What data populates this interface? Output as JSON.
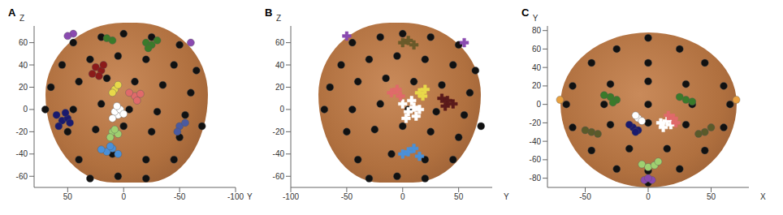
{
  "chart_data": [
    {
      "type": "scatter",
      "title": "A",
      "x_label": "Y",
      "y_label": "Z",
      "xlim": [
        80,
        -100
      ],
      "xticks": [
        50,
        0,
        -50,
        -100
      ],
      "ylim": [
        -70,
        75
      ],
      "yticks": [
        -60,
        -40,
        -20,
        0,
        20,
        40,
        60
      ],
      "series": [
        {
          "color": "#111111",
          "marker": "circle",
          "x": [
            45,
            20,
            0,
            -25,
            -50,
            55,
            30,
            5,
            -20,
            -45,
            -65,
            65,
            40,
            15,
            -10,
            -35,
            -60,
            70,
            45,
            20,
            -5,
            -30,
            -55,
            50,
            25,
            0,
            -25,
            -50,
            -70,
            40,
            10,
            -20,
            -45,
            30,
            5,
            -20
          ],
          "y": [
            60,
            65,
            68,
            65,
            58,
            40,
            45,
            48,
            45,
            40,
            35,
            20,
            25,
            28,
            25,
            22,
            15,
            0,
            0,
            5,
            0,
            -2,
            -5,
            -20,
            -18,
            -15,
            -20,
            -25,
            -15,
            -45,
            -40,
            -45,
            -45,
            -62,
            -60,
            -62
          ]
        },
        {
          "color": "#1a1a6e",
          "marker": "circle",
          "x": [
            60,
            55,
            50,
            58,
            52,
            48
          ],
          "y": [
            -5,
            -10,
            -8,
            -15,
            -3,
            -12
          ]
        },
        {
          "color": "#8b1a1a",
          "marker": "circle",
          "x": [
            25,
            20,
            28,
            22,
            18
          ],
          "y": [
            38,
            35,
            32,
            30,
            40
          ]
        },
        {
          "color": "#ffffff",
          "marker": "circle",
          "x": [
            5,
            8,
            3,
            10,
            0,
            6
          ],
          "y": [
            -5,
            -2,
            0,
            -8,
            -4,
            3
          ]
        },
        {
          "color": "#e8d84a",
          "marker": "circle",
          "x": [
            8,
            5,
            10
          ],
          "y": [
            18,
            22,
            15
          ]
        },
        {
          "color": "#3a7a2a",
          "marker": "circle",
          "x": [
            -20,
            -25,
            -30,
            -22,
            15,
            10
          ],
          "y": [
            60,
            58,
            62,
            55,
            64,
            62
          ]
        },
        {
          "color": "#4a90d8",
          "marker": "circle",
          "x": [
            15,
            10,
            5,
            20,
            12
          ],
          "y": [
            -38,
            -35,
            -40,
            -36,
            -33
          ]
        },
        {
          "color": "#9fd070",
          "marker": "circle",
          "x": [
            10,
            5,
            12,
            8
          ],
          "y": [
            -20,
            -22,
            -25,
            -18
          ]
        },
        {
          "color": "#e06a6a",
          "marker": "circle",
          "x": [
            -10,
            -5,
            -12,
            -15
          ],
          "y": [
            12,
            15,
            8,
            14
          ]
        },
        {
          "color": "#4a5aa0",
          "marker": "circle",
          "x": [
            -50,
            -55,
            -48
          ],
          "y": [
            -15,
            -12,
            -20
          ]
        },
        {
          "color": "#8a4ab0",
          "marker": "circle",
          "x": [
            45,
            50,
            -60
          ],
          "y": [
            68,
            66,
            60
          ]
        }
      ]
    },
    {
      "type": "scatter",
      "title": "B",
      "x_label": "Y",
      "y_label": "Z",
      "xlim": [
        -100,
        80
      ],
      "xticks": [
        -100,
        -50,
        0,
        50
      ],
      "ylim": [
        -70,
        75
      ],
      "yticks": [
        -60,
        -40,
        -20,
        0,
        20,
        40,
        60
      ],
      "series": [
        {
          "color": "#111111",
          "marker": "circle",
          "x": [
            -45,
            -20,
            0,
            25,
            50,
            -55,
            -30,
            -5,
            20,
            45,
            65,
            -65,
            -40,
            -15,
            10,
            35,
            60,
            -70,
            -45,
            -20,
            5,
            30,
            55,
            -50,
            -25,
            0,
            25,
            50,
            70,
            -40,
            -10,
            20,
            45,
            -30,
            -5,
            20
          ],
          "y": [
            60,
            65,
            68,
            65,
            58,
            40,
            45,
            48,
            45,
            40,
            35,
            20,
            25,
            28,
            25,
            22,
            15,
            0,
            0,
            5,
            0,
            -2,
            -5,
            -20,
            -18,
            -15,
            -20,
            -25,
            -15,
            -45,
            -40,
            -45,
            -45,
            -62,
            -60,
            -62
          ]
        },
        {
          "color": "#ffffff",
          "marker": "cross",
          "x": [
            5,
            10,
            0,
            12,
            3,
            8,
            15
          ],
          "y": [
            -2,
            2,
            5,
            -6,
            -8,
            8,
            0
          ]
        },
        {
          "color": "#e8d84a",
          "marker": "cross",
          "x": [
            15,
            20,
            18
          ],
          "y": [
            15,
            18,
            12
          ]
        },
        {
          "color": "#e06a6a",
          "marker": "cross",
          "x": [
            -5,
            -10,
            -2
          ],
          "y": [
            18,
            15,
            12
          ]
        },
        {
          "color": "#5a1a1a",
          "marker": "cross",
          "x": [
            35,
            40,
            45,
            38
          ],
          "y": [
            10,
            8,
            5,
            3
          ]
        },
        {
          "color": "#4a90d8",
          "marker": "cross",
          "x": [
            5,
            10,
            0,
            15
          ],
          "y": [
            -38,
            -35,
            -40,
            -42
          ]
        },
        {
          "color": "#6a5a2a",
          "marker": "cross",
          "x": [
            0,
            5,
            10
          ],
          "y": [
            60,
            62,
            58
          ]
        },
        {
          "color": "#8a4ab0",
          "marker": "cross",
          "x": [
            -50,
            55
          ],
          "y": [
            66,
            60
          ]
        }
      ]
    },
    {
      "type": "scatter",
      "title": "C",
      "x_label": "X",
      "y_label": "Y",
      "xlim": [
        -80,
        80
      ],
      "xticks": [
        -50,
        0,
        50
      ],
      "ylim": [
        -90,
        85
      ],
      "yticks": [
        -80,
        -60,
        -40,
        -20,
        0,
        20,
        40,
        60,
        80
      ],
      "series": [
        {
          "color": "#111111",
          "marker": "circle",
          "x": [
            0,
            -25,
            25,
            -45,
            0,
            45,
            -60,
            -30,
            0,
            30,
            60,
            -65,
            -35,
            0,
            35,
            65,
            -60,
            -30,
            0,
            30,
            60,
            -45,
            -15,
            15,
            45,
            -25,
            0,
            25,
            0
          ],
          "y": [
            72,
            60,
            60,
            45,
            45,
            45,
            20,
            22,
            25,
            22,
            20,
            0,
            0,
            0,
            0,
            0,
            -25,
            -22,
            -20,
            -22,
            -25,
            -50,
            -48,
            -48,
            -50,
            -70,
            -72,
            -70,
            -85
          ]
        },
        {
          "color": "#3a7a2a",
          "marker": "circle",
          "x": [
            -30,
            -25,
            -35,
            -28,
            30,
            25,
            35
          ],
          "y": [
            8,
            5,
            10,
            2,
            5,
            8,
            3
          ]
        },
        {
          "color": "#ffffff",
          "marker": "circle",
          "x": [
            -8,
            -5,
            -10
          ],
          "y": [
            -15,
            -18,
            -12
          ]
        },
        {
          "color": "#1a1a6e",
          "marker": "circle",
          "x": [
            -12,
            -8,
            -15,
            -10
          ],
          "y": [
            -25,
            -28,
            -22,
            -30
          ]
        },
        {
          "color": "#ffffff",
          "marker": "cross",
          "x": [
            10,
            15,
            12,
            18
          ],
          "y": [
            -20,
            -18,
            -25,
            -22
          ]
        },
        {
          "color": "#e06a6a",
          "marker": "cross",
          "x": [
            20,
            22,
            16
          ],
          "y": [
            -15,
            -20,
            -12
          ]
        },
        {
          "color": "#5a5a2a",
          "marker": "circle",
          "x": [
            -45,
            -50,
            -40,
            45,
            50,
            40
          ],
          "y": [
            -30,
            -28,
            -32,
            -30,
            -25,
            -32
          ]
        },
        {
          "color": "#9fd070",
          "marker": "circle",
          "x": [
            -5,
            0,
            5,
            8
          ],
          "y": [
            -65,
            -68,
            -66,
            -62
          ]
        },
        {
          "color": "#8a4ab0",
          "marker": "circle",
          "x": [
            -3,
            3,
            0
          ],
          "y": [
            -82,
            -82,
            -80
          ]
        },
        {
          "color": "#e8a040",
          "marker": "circle",
          "x": [
            -70,
            70
          ],
          "y": [
            5,
            5
          ]
        }
      ]
    }
  ]
}
